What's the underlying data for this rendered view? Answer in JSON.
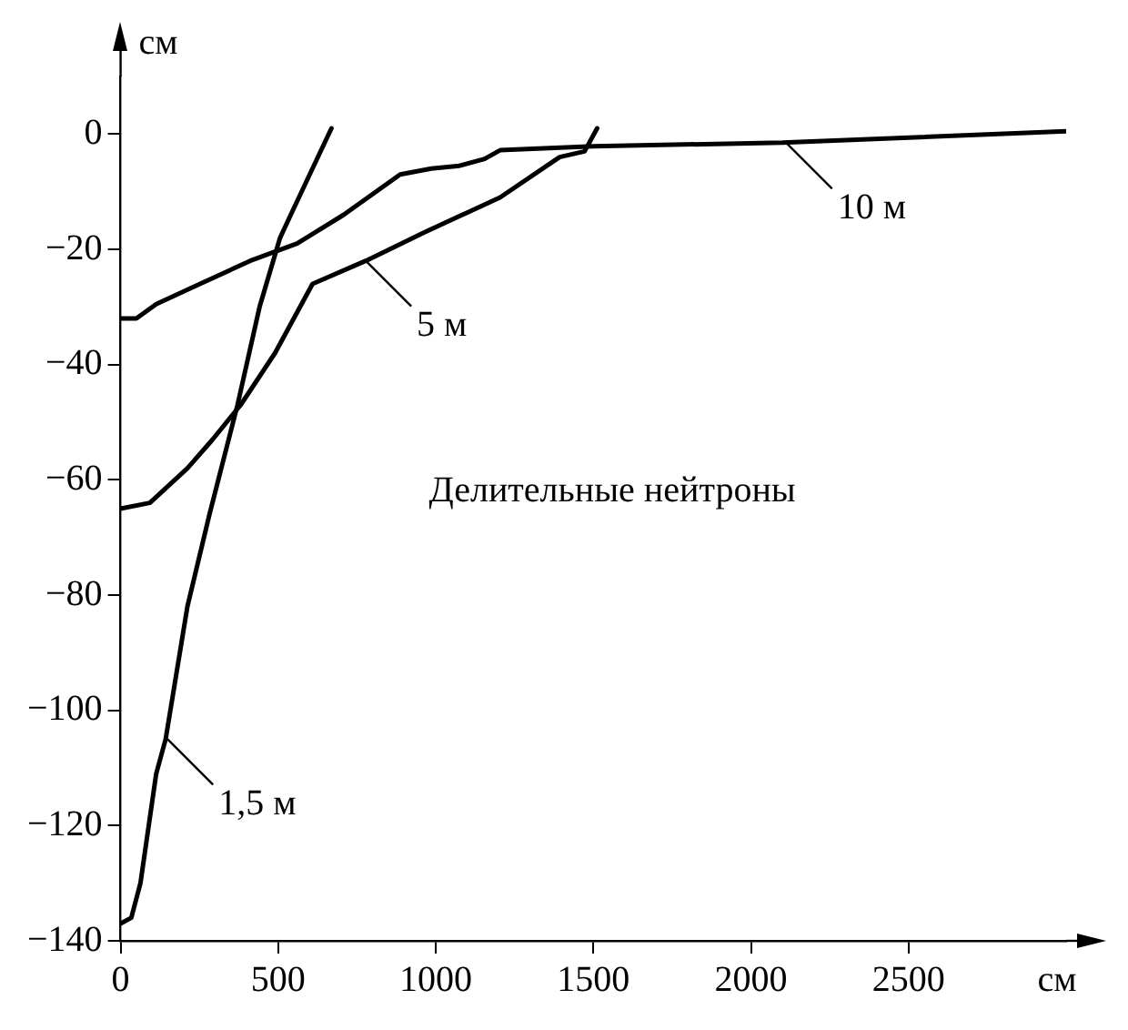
{
  "chart_data": {
    "type": "line",
    "xlabel": "см",
    "ylabel": "см",
    "xlim": [
      0,
      3000
    ],
    "ylim": [
      -140,
      10
    ],
    "xticks": [
      0,
      500,
      1000,
      1500,
      2000,
      2500
    ],
    "yticks": [
      {
        "value": -140,
        "label": "−140"
      },
      {
        "value": -120,
        "label": "−120"
      },
      {
        "value": -100,
        "label": "−100"
      },
      {
        "value": -80,
        "label": "−80"
      },
      {
        "value": -60,
        "label": "−60"
      },
      {
        "value": -40,
        "label": "−40"
      },
      {
        "value": -20,
        "label": "−20"
      },
      0
    ],
    "series": [
      {
        "color": "#000000",
        "x": [
          0,
          34,
          63,
          113,
          143,
          212,
          282,
          371,
          441,
          506,
          540,
          669
        ],
        "values": [
          -137,
          -136,
          -130,
          -111,
          -105,
          -82,
          -66,
          -47,
          -30,
          -18,
          -14,
          1
        ]
      },
      {
        "color": "#000000",
        "x": [
          0,
          93,
          212,
          292,
          381,
          490,
          609,
          778,
          966,
          1204,
          1393,
          1472,
          1512
        ],
        "values": [
          -65,
          -64,
          -58,
          -53,
          -47,
          -38,
          -26,
          -22,
          -17,
          -11,
          -4,
          -3,
          1
        ]
      },
      {
        "color": "#000000",
        "x": [
          0,
          50,
          113,
          252,
          411,
          560,
          708,
          887,
          986,
          1075,
          1155,
          1204,
          1500,
          2100,
          3000
        ],
        "values": [
          -32,
          -32,
          -29.5,
          -26,
          -22,
          -19,
          -14,
          -7,
          -6,
          -5.5,
          -4.3,
          -2.8,
          -2.1,
          -1.5,
          0.5
        ]
      }
    ],
    "line_style": "solid",
    "marker": "none",
    "legend": false,
    "annotations": [
      {
        "text": "1,5 м",
        "x": 149,
        "y": -105
      },
      {
        "text": "5 м",
        "x": 778,
        "y": -22
      },
      {
        "text": "10 м",
        "x": 2113,
        "y": -1.6
      },
      "Делительные нейтроны"
    ]
  }
}
